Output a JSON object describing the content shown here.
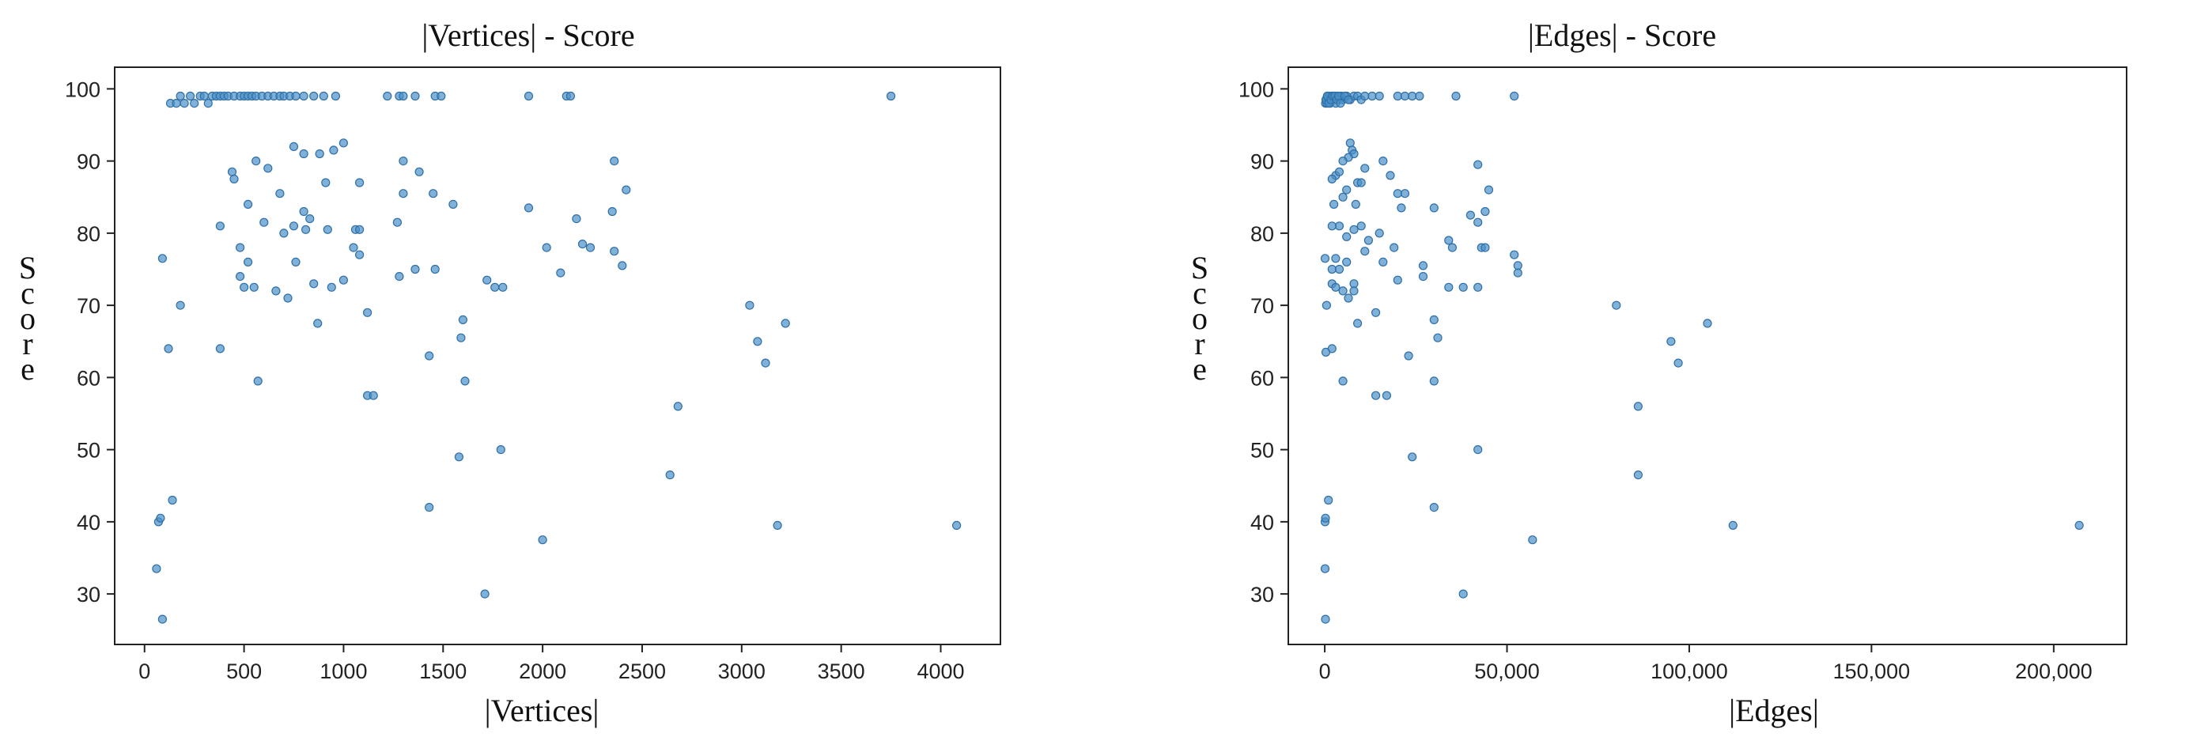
{
  "chart_data": [
    {
      "type": "scatter",
      "title": "|Vertices| - Score",
      "xlabel": "|Vertices|",
      "ylabel": "Score",
      "xlim": [
        -150,
        4300
      ],
      "ylim": [
        23,
        103
      ],
      "xticks": [
        0,
        500,
        1000,
        1500,
        2000,
        2500,
        3000,
        3500,
        4000
      ],
      "xtick_labels": [
        "0",
        "500",
        "1000",
        "1500",
        "2000",
        "2500",
        "3000",
        "3500",
        "4000"
      ],
      "yticks": [
        30,
        40,
        50,
        60,
        70,
        80,
        90,
        100
      ],
      "ytick_labels": [
        "30",
        "40",
        "50",
        "60",
        "70",
        "80",
        "90",
        "100"
      ],
      "grid": false,
      "marker_color": "#4a90c8",
      "points": [
        [
          130,
          98
        ],
        [
          160,
          98
        ],
        [
          180,
          99
        ],
        [
          200,
          98
        ],
        [
          230,
          99
        ],
        [
          250,
          98
        ],
        [
          280,
          99
        ],
        [
          300,
          99
        ],
        [
          320,
          98
        ],
        [
          340,
          99
        ],
        [
          360,
          99
        ],
        [
          380,
          99
        ],
        [
          400,
          99
        ],
        [
          420,
          99
        ],
        [
          450,
          99
        ],
        [
          480,
          99
        ],
        [
          500,
          99
        ],
        [
          520,
          99
        ],
        [
          540,
          99
        ],
        [
          560,
          99
        ],
        [
          590,
          99
        ],
        [
          620,
          99
        ],
        [
          650,
          99
        ],
        [
          680,
          99
        ],
        [
          700,
          99
        ],
        [
          730,
          99
        ],
        [
          760,
          99
        ],
        [
          800,
          99
        ],
        [
          850,
          99
        ],
        [
          900,
          99
        ],
        [
          960,
          99
        ],
        [
          1220,
          99
        ],
        [
          1280,
          99
        ],
        [
          1300,
          99
        ],
        [
          1360,
          99
        ],
        [
          1460,
          99
        ],
        [
          1490,
          99
        ],
        [
          1930,
          99
        ],
        [
          2120,
          99
        ],
        [
          2140,
          99
        ],
        [
          3750,
          99
        ],
        [
          1000,
          92.5
        ],
        [
          750,
          92
        ],
        [
          800,
          91
        ],
        [
          950,
          91.5
        ],
        [
          880,
          91
        ],
        [
          1300,
          90
        ],
        [
          560,
          90
        ],
        [
          620,
          89
        ],
        [
          440,
          88.5
        ],
        [
          450,
          87.5
        ],
        [
          1380,
          88.5
        ],
        [
          910,
          87
        ],
        [
          1080,
          87
        ],
        [
          2360,
          90
        ],
        [
          2420,
          86
        ],
        [
          680,
          85.5
        ],
        [
          520,
          84
        ],
        [
          1300,
          85.5
        ],
        [
          1450,
          85.5
        ],
        [
          1550,
          84
        ],
        [
          800,
          83
        ],
        [
          2350,
          83
        ],
        [
          830,
          82
        ],
        [
          600,
          81.5
        ],
        [
          1270,
          81.5
        ],
        [
          1060,
          80.5
        ],
        [
          2170,
          82
        ],
        [
          750,
          81
        ],
        [
          380,
          81
        ],
        [
          810,
          80.5
        ],
        [
          1080,
          80.5
        ],
        [
          700,
          80
        ],
        [
          920,
          80.5
        ],
        [
          2360,
          77.5
        ],
        [
          1930,
          83.5
        ],
        [
          520,
          76
        ],
        [
          2200,
          78.5
        ],
        [
          2240,
          78
        ],
        [
          1050,
          78
        ],
        [
          480,
          78
        ],
        [
          2020,
          78
        ],
        [
          1080,
          77
        ],
        [
          760,
          76
        ],
        [
          1360,
          75
        ],
        [
          1460,
          75
        ],
        [
          2400,
          75.5
        ],
        [
          2090,
          74.5
        ],
        [
          480,
          74
        ],
        [
          1000,
          73.5
        ],
        [
          1280,
          74
        ],
        [
          1720,
          73.5
        ],
        [
          1760,
          72.5
        ],
        [
          1800,
          72.5
        ],
        [
          850,
          73
        ],
        [
          660,
          72
        ],
        [
          500,
          72.5
        ],
        [
          550,
          72.5
        ],
        [
          940,
          72.5
        ],
        [
          720,
          71
        ],
        [
          870,
          67.5
        ],
        [
          1120,
          69
        ],
        [
          180,
          70
        ],
        [
          3040,
          70
        ],
        [
          3220,
          67.5
        ],
        [
          3080,
          65
        ],
        [
          1600,
          68
        ],
        [
          1590,
          65.5
        ],
        [
          1430,
          63
        ],
        [
          380,
          64
        ],
        [
          120,
          64
        ],
        [
          3120,
          62
        ],
        [
          570,
          59.5
        ],
        [
          1610,
          59.5
        ],
        [
          1120,
          57.5
        ],
        [
          1150,
          57.5
        ],
        [
          2680,
          56
        ],
        [
          1580,
          49
        ],
        [
          1790,
          50
        ],
        [
          2640,
          46.5
        ],
        [
          140,
          43
        ],
        [
          1430,
          42
        ],
        [
          70,
          40
        ],
        [
          80,
          40.5
        ],
        [
          3180,
          39.5
        ],
        [
          4080,
          39.5
        ],
        [
          2000,
          37.5
        ],
        [
          60,
          33.5
        ],
        [
          1710,
          30
        ],
        [
          90,
          26.5
        ],
        [
          90,
          76.5
        ]
      ]
    },
    {
      "type": "scatter",
      "title": "|Edges| - Score",
      "xlabel": "|Edges|",
      "ylabel": "Score",
      "xlim": [
        -10000,
        220000
      ],
      "ylim": [
        23,
        103
      ],
      "xticks": [
        0,
        50000,
        100000,
        150000,
        200000
      ],
      "xtick_labels": [
        "0",
        "50,000",
        "100,000",
        "150,000",
        "200,000"
      ],
      "yticks": [
        30,
        40,
        50,
        60,
        70,
        80,
        90,
        100
      ],
      "ytick_labels": [
        "30",
        "40",
        "50",
        "60",
        "70",
        "80",
        "90",
        "100"
      ],
      "grid": false,
      "marker_color": "#4a90c8",
      "points": [
        [
          200,
          98
        ],
        [
          400,
          98.5
        ],
        [
          600,
          98
        ],
        [
          800,
          99
        ],
        [
          1000,
          98.5
        ],
        [
          1200,
          99
        ],
        [
          1500,
          98
        ],
        [
          1800,
          99
        ],
        [
          2000,
          98.5
        ],
        [
          2500,
          99
        ],
        [
          3000,
          98
        ],
        [
          3500,
          99
        ],
        [
          4000,
          98.5
        ],
        [
          4500,
          99
        ],
        [
          5000,
          98.5
        ],
        [
          6000,
          99
        ],
        [
          7000,
          98.5
        ],
        [
          8000,
          99
        ],
        [
          9000,
          99
        ],
        [
          10000,
          98.5
        ],
        [
          11000,
          99
        ],
        [
          13000,
          99
        ],
        [
          15000,
          99
        ],
        [
          20000,
          99
        ],
        [
          22000,
          99
        ],
        [
          24000,
          99
        ],
        [
          26000,
          99
        ],
        [
          36000,
          99
        ],
        [
          52000,
          99
        ],
        [
          300,
          98.5
        ],
        [
          700,
          99
        ],
        [
          1100,
          98
        ],
        [
          1700,
          98.5
        ],
        [
          2200,
          99
        ],
        [
          2800,
          99
        ],
        [
          3300,
          98.5
        ],
        [
          3800,
          99
        ],
        [
          4300,
          98
        ],
        [
          5500,
          99
        ],
        [
          6500,
          98.5
        ],
        [
          7000,
          92.5
        ],
        [
          7500,
          91.5
        ],
        [
          8000,
          91
        ],
        [
          6500,
          90.5
        ],
        [
          5000,
          90
        ],
        [
          16000,
          90
        ],
        [
          11000,
          89
        ],
        [
          18000,
          88
        ],
        [
          3000,
          88
        ],
        [
          4000,
          88.5
        ],
        [
          9000,
          87
        ],
        [
          10000,
          87
        ],
        [
          2000,
          87.5
        ],
        [
          6000,
          86
        ],
        [
          20000,
          85.5
        ],
        [
          22000,
          85.5
        ],
        [
          42000,
          89.5
        ],
        [
          45000,
          86
        ],
        [
          44000,
          83
        ],
        [
          5000,
          85
        ],
        [
          8500,
          84
        ],
        [
          2500,
          84
        ],
        [
          21000,
          83.5
        ],
        [
          30000,
          83.5
        ],
        [
          10000,
          81
        ],
        [
          8000,
          80.5
        ],
        [
          4000,
          81
        ],
        [
          15000,
          80
        ],
        [
          2000,
          81
        ],
        [
          40000,
          82.5
        ],
        [
          42000,
          81.5
        ],
        [
          6000,
          79.5
        ],
        [
          12000,
          79
        ],
        [
          34000,
          79
        ],
        [
          35000,
          78
        ],
        [
          43000,
          78
        ],
        [
          44000,
          78
        ],
        [
          11000,
          77.5
        ],
        [
          19000,
          78
        ],
        [
          3000,
          76.5
        ],
        [
          27000,
          75.5
        ],
        [
          52000,
          77
        ],
        [
          53000,
          75.5
        ],
        [
          53000,
          74.5
        ],
        [
          16000,
          76
        ],
        [
          6000,
          76
        ],
        [
          2000,
          75
        ],
        [
          4000,
          75
        ],
        [
          27000,
          74
        ],
        [
          20000,
          73.5
        ],
        [
          8000,
          73
        ],
        [
          2000,
          73
        ],
        [
          8000,
          72
        ],
        [
          3000,
          72.5
        ],
        [
          34000,
          72.5
        ],
        [
          38000,
          72.5
        ],
        [
          42000,
          72.5
        ],
        [
          5000,
          72
        ],
        [
          6500,
          71
        ],
        [
          9000,
          67.5
        ],
        [
          14000,
          69
        ],
        [
          500,
          70
        ],
        [
          80000,
          70
        ],
        [
          105000,
          67.5
        ],
        [
          95000,
          65
        ],
        [
          30000,
          68
        ],
        [
          31000,
          65.5
        ],
        [
          23000,
          63
        ],
        [
          2000,
          64
        ],
        [
          300,
          63.5
        ],
        [
          97000,
          62
        ],
        [
          5000,
          59.5
        ],
        [
          30000,
          59.5
        ],
        [
          14000,
          57.5
        ],
        [
          17000,
          57.5
        ],
        [
          86000,
          56
        ],
        [
          24000,
          49
        ],
        [
          42000,
          50
        ],
        [
          86000,
          46.5
        ],
        [
          1000,
          43
        ],
        [
          30000,
          42
        ],
        [
          100,
          40
        ],
        [
          200,
          40.5
        ],
        [
          112000,
          39.5
        ],
        [
          207000,
          39.5
        ],
        [
          57000,
          37.5
        ],
        [
          100,
          33.5
        ],
        [
          38000,
          30
        ],
        [
          200,
          26.5
        ],
        [
          100,
          76.5
        ]
      ]
    }
  ]
}
